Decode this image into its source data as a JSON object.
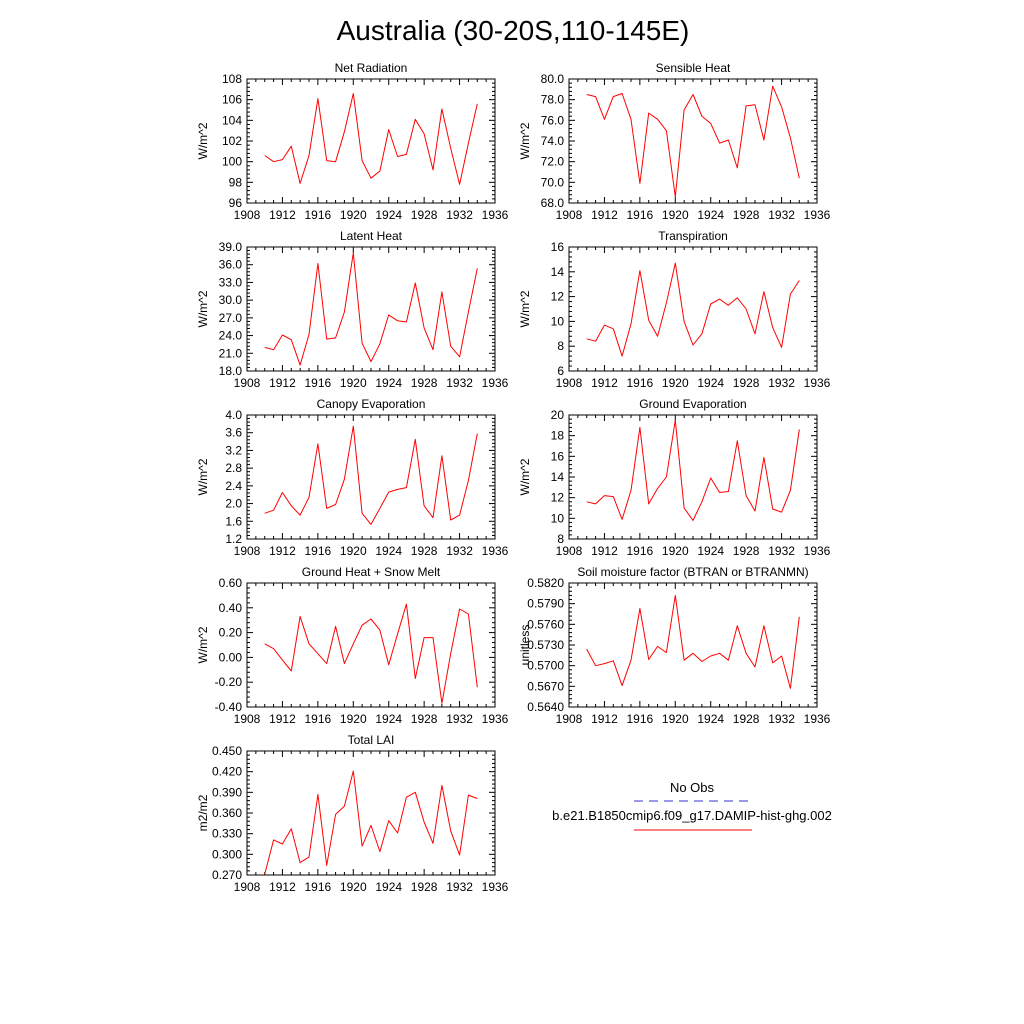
{
  "figure": {
    "title": "Australia (30-20S,110-145E)"
  },
  "legend": {
    "obs_label": "No Obs",
    "model_label": "b.e21.B1850cmip6.f09_g17.DAMIP-hist-ghg.002",
    "obs_color": "#3333cc",
    "model_color": "#ff0000"
  },
  "chart_data": [
    {
      "type": "line",
      "title": "Net Radiation",
      "ylabel": "W/m^2",
      "xlim": [
        1908,
        1936
      ],
      "x_ticks": [
        "1908",
        "1912",
        "1916",
        "1920",
        "1924",
        "1928",
        "1932",
        "1936"
      ],
      "ylim": [
        96,
        108
      ],
      "y_ticks": [
        "96",
        "98",
        "100",
        "102",
        "104",
        "106",
        "108"
      ],
      "x": [
        1910,
        1911,
        1912,
        1913,
        1914,
        1915,
        1916,
        1917,
        1918,
        1919,
        1920,
        1921,
        1922,
        1923,
        1924,
        1925,
        1926,
        1927,
        1928,
        1929,
        1930,
        1931,
        1932,
        1933,
        1934
      ],
      "series": [
        {
          "color": "#ff0000",
          "values": [
            100.6,
            100.0,
            100.2,
            101.5,
            97.9,
            100.6,
            106.1,
            100.1,
            100.0,
            102.9,
            106.6,
            100.1,
            98.4,
            99.1,
            103.1,
            100.5,
            100.7,
            104.1,
            102.7,
            99.2,
            105.1,
            101.3,
            97.8,
            101.8,
            105.6
          ]
        }
      ]
    },
    {
      "type": "line",
      "title": "Sensible Heat",
      "ylabel": "W/m^2",
      "xlim": [
        1908,
        1936
      ],
      "x_ticks": [
        "1908",
        "1912",
        "1916",
        "1920",
        "1924",
        "1928",
        "1932",
        "1936"
      ],
      "ylim": [
        68,
        80
      ],
      "y_ticks": [
        "68.0",
        "70.0",
        "72.0",
        "74.0",
        "76.0",
        "78.0",
        "80.0"
      ],
      "x": [
        1910,
        1911,
        1912,
        1913,
        1914,
        1915,
        1916,
        1917,
        1918,
        1919,
        1920,
        1921,
        1922,
        1923,
        1924,
        1925,
        1926,
        1927,
        1928,
        1929,
        1930,
        1931,
        1932,
        1933,
        1934
      ],
      "series": [
        {
          "color": "#ff0000",
          "values": [
            78.5,
            78.3,
            76.1,
            78.3,
            78.6,
            76.1,
            69.9,
            76.7,
            76.1,
            75.0,
            68.6,
            77.0,
            78.5,
            76.4,
            75.7,
            73.8,
            74.1,
            71.4,
            77.4,
            77.5,
            74.1,
            79.3,
            77.3,
            74.3,
            70.4
          ]
        }
      ]
    },
    {
      "type": "line",
      "title": "Latent Heat",
      "ylabel": "W/m^2",
      "xlim": [
        1908,
        1936
      ],
      "x_ticks": [
        "1908",
        "1912",
        "1916",
        "1920",
        "1924",
        "1928",
        "1932",
        "1936"
      ],
      "ylim": [
        18,
        39
      ],
      "y_ticks": [
        "18.0",
        "21.0",
        "24.0",
        "27.0",
        "30.0",
        "33.0",
        "36.0",
        "39.0"
      ],
      "x": [
        1910,
        1911,
        1912,
        1913,
        1914,
        1915,
        1916,
        1917,
        1918,
        1919,
        1920,
        1921,
        1922,
        1923,
        1924,
        1925,
        1926,
        1927,
        1928,
        1929,
        1930,
        1931,
        1932,
        1933,
        1934
      ],
      "series": [
        {
          "color": "#ff0000",
          "values": [
            22.0,
            21.6,
            24.1,
            23.3,
            19.0,
            24.2,
            36.2,
            23.4,
            23.6,
            28.0,
            38.0,
            22.7,
            19.6,
            22.6,
            27.5,
            26.5,
            26.3,
            32.9,
            25.3,
            21.6,
            31.4,
            22.2,
            20.4,
            28.0,
            35.4
          ]
        }
      ]
    },
    {
      "type": "line",
      "title": "Transpiration",
      "ylabel": "W/m^2",
      "xlim": [
        1908,
        1936
      ],
      "x_ticks": [
        "1908",
        "1912",
        "1916",
        "1920",
        "1924",
        "1928",
        "1932",
        "1936"
      ],
      "ylim": [
        6,
        16
      ],
      "y_ticks": [
        "6",
        "8",
        "10",
        "12",
        "14",
        "16"
      ],
      "x": [
        1910,
        1911,
        1912,
        1913,
        1914,
        1915,
        1916,
        1917,
        1918,
        1919,
        1920,
        1921,
        1922,
        1923,
        1924,
        1925,
        1926,
        1927,
        1928,
        1929,
        1930,
        1931,
        1932,
        1933,
        1934
      ],
      "series": [
        {
          "color": "#ff0000",
          "values": [
            8.6,
            8.4,
            9.7,
            9.4,
            7.2,
            9.8,
            14.1,
            10.1,
            8.8,
            11.5,
            14.7,
            10.0,
            8.1,
            9.0,
            11.4,
            11.8,
            11.3,
            11.9,
            11.0,
            9.0,
            12.4,
            9.5,
            7.9,
            12.2,
            13.3
          ]
        }
      ]
    },
    {
      "type": "line",
      "title": "Canopy Evaporation",
      "ylabel": "W/m^2",
      "xlim": [
        1908,
        1936
      ],
      "x_ticks": [
        "1908",
        "1912",
        "1916",
        "1920",
        "1924",
        "1928",
        "1932",
        "1936"
      ],
      "ylim": [
        1.2,
        4.0
      ],
      "y_ticks": [
        "1.2",
        "1.6",
        "2.0",
        "2.4",
        "2.8",
        "3.2",
        "3.6",
        "4.0"
      ],
      "x": [
        1910,
        1911,
        1912,
        1913,
        1914,
        1915,
        1916,
        1917,
        1918,
        1919,
        1920,
        1921,
        1922,
        1923,
        1924,
        1925,
        1926,
        1927,
        1928,
        1929,
        1930,
        1931,
        1932,
        1933,
        1934
      ],
      "series": [
        {
          "color": "#ff0000",
          "values": [
            1.78,
            1.85,
            2.25,
            1.95,
            1.74,
            2.14,
            3.35,
            1.89,
            1.98,
            2.55,
            3.75,
            1.78,
            1.53,
            1.89,
            2.26,
            2.32,
            2.36,
            3.45,
            1.95,
            1.68,
            3.08,
            1.63,
            1.74,
            2.52,
            3.58
          ]
        }
      ]
    },
    {
      "type": "line",
      "title": "Ground Evaporation",
      "ylabel": "W/m^2",
      "xlim": [
        1908,
        1936
      ],
      "x_ticks": [
        "1908",
        "1912",
        "1916",
        "1920",
        "1924",
        "1928",
        "1932",
        "1936"
      ],
      "ylim": [
        8,
        20
      ],
      "y_ticks": [
        "8",
        "10",
        "12",
        "14",
        "16",
        "18",
        "20"
      ],
      "x": [
        1910,
        1911,
        1912,
        1913,
        1914,
        1915,
        1916,
        1917,
        1918,
        1919,
        1920,
        1921,
        1922,
        1923,
        1924,
        1925,
        1926,
        1927,
        1928,
        1929,
        1930,
        1931,
        1932,
        1933,
        1934
      ],
      "series": [
        {
          "color": "#ff0000",
          "values": [
            11.6,
            11.4,
            12.2,
            12.1,
            9.9,
            12.7,
            18.8,
            11.4,
            12.9,
            14.0,
            19.5,
            11.0,
            9.8,
            11.6,
            13.9,
            12.5,
            12.6,
            17.5,
            12.2,
            10.7,
            15.9,
            10.9,
            10.6,
            12.7,
            18.6
          ]
        }
      ]
    },
    {
      "type": "line",
      "title": "Ground Heat + Snow Melt",
      "ylabel": "W/m^2",
      "xlim": [
        1908,
        1936
      ],
      "x_ticks": [
        "1908",
        "1912",
        "1916",
        "1920",
        "1924",
        "1928",
        "1932",
        "1936"
      ],
      "ylim": [
        -0.4,
        0.6
      ],
      "y_ticks": [
        "-0.40",
        "-0.20",
        "0.00",
        "0.20",
        "0.40",
        "0.60"
      ],
      "x": [
        1910,
        1911,
        1912,
        1913,
        1914,
        1915,
        1916,
        1917,
        1918,
        1919,
        1920,
        1921,
        1922,
        1923,
        1924,
        1925,
        1926,
        1927,
        1928,
        1929,
        1930,
        1931,
        1932,
        1933,
        1934
      ],
      "series": [
        {
          "color": "#ff0000",
          "values": [
            0.11,
            0.07,
            -0.02,
            -0.11,
            0.33,
            0.11,
            0.03,
            -0.05,
            0.25,
            -0.05,
            0.11,
            0.26,
            0.31,
            0.22,
            -0.06,
            0.19,
            0.43,
            -0.17,
            0.16,
            0.16,
            -0.37,
            0.03,
            0.39,
            0.35,
            -0.24
          ]
        }
      ]
    },
    {
      "type": "line",
      "title": "Soil moisture factor (BTRAN or BTRANMN)",
      "ylabel": "unitless",
      "xlim": [
        1908,
        1936
      ],
      "x_ticks": [
        "1908",
        "1912",
        "1916",
        "1920",
        "1924",
        "1928",
        "1932",
        "1936"
      ],
      "ylim": [
        0.564,
        0.582
      ],
      "y_ticks": [
        "0.5640",
        "0.5670",
        "0.5700",
        "0.5730",
        "0.5760",
        "0.5790",
        "0.5820"
      ],
      "x": [
        1910,
        1911,
        1912,
        1913,
        1914,
        1915,
        1916,
        1917,
        1918,
        1919,
        1920,
        1921,
        1922,
        1923,
        1924,
        1925,
        1926,
        1927,
        1928,
        1929,
        1930,
        1931,
        1932,
        1933,
        1934
      ],
      "series": [
        {
          "color": "#ff0000",
          "values": [
            0.5724,
            0.57,
            0.5703,
            0.5707,
            0.5671,
            0.5708,
            0.5783,
            0.5709,
            0.5728,
            0.5719,
            0.5802,
            0.5708,
            0.5718,
            0.5706,
            0.5714,
            0.5718,
            0.5708,
            0.5758,
            0.5718,
            0.5698,
            0.5758,
            0.5704,
            0.5714,
            0.5667,
            0.5771
          ]
        }
      ]
    },
    {
      "type": "line",
      "title": "Total LAI",
      "ylabel": "m2/m2",
      "xlim": [
        1908,
        1936
      ],
      "x_ticks": [
        "1908",
        "1912",
        "1916",
        "1920",
        "1924",
        "1928",
        "1932",
        "1936"
      ],
      "ylim": [
        0.27,
        0.45
      ],
      "y_ticks": [
        "0.270",
        "0.300",
        "0.330",
        "0.360",
        "0.390",
        "0.420",
        "0.450"
      ],
      "x": [
        1910,
        1911,
        1912,
        1913,
        1914,
        1915,
        1916,
        1917,
        1918,
        1919,
        1920,
        1921,
        1922,
        1923,
        1924,
        1925,
        1926,
        1927,
        1928,
        1929,
        1930,
        1931,
        1932,
        1933,
        1934
      ],
      "series": [
        {
          "color": "#ff0000",
          "values": [
            0.271,
            0.321,
            0.315,
            0.337,
            0.288,
            0.296,
            0.387,
            0.284,
            0.358,
            0.37,
            0.421,
            0.312,
            0.342,
            0.304,
            0.349,
            0.331,
            0.383,
            0.39,
            0.347,
            0.316,
            0.4,
            0.334,
            0.299,
            0.386,
            0.381
          ]
        }
      ]
    }
  ]
}
